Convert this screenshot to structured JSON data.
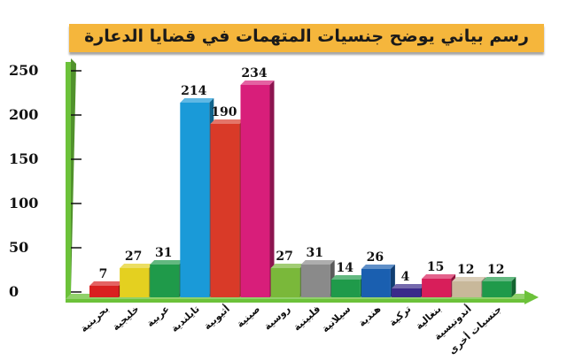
{
  "chart_data": {
    "type": "bar",
    "title": "رسم بياني يوضح جنسيات المتهمات في قضايا الدعارة",
    "categories": [
      "بحرينية",
      "خليجية",
      "عربية",
      "تايلندية",
      "أثيوبية",
      "صينية",
      "روسية",
      "فلبينية",
      "سيلانية",
      "هندية",
      "تركية",
      "بنغالية",
      "أندونيسية",
      "جنسيات أخرى"
    ],
    "values": [
      7,
      27,
      31,
      214,
      190,
      234,
      27,
      31,
      14,
      26,
      4,
      15,
      12,
      12
    ],
    "colors": [
      "#d92020",
      "#e4d020",
      "#1f9a4a",
      "#1a9ad8",
      "#d93a28",
      "#d81e7a",
      "#7ab83a",
      "#8a8a8a",
      "#1f9a4a",
      "#1a5fb0",
      "#3a2a8a",
      "#d81e5a",
      "#c8b89a",
      "#1f9a4a"
    ],
    "ylim": [
      0,
      250
    ],
    "yticks": [
      0,
      50,
      100,
      150,
      200,
      250
    ],
    "axis_color": "#6cc23a",
    "banner_color": "#f5b63c",
    "grid": false,
    "legend": "none"
  }
}
